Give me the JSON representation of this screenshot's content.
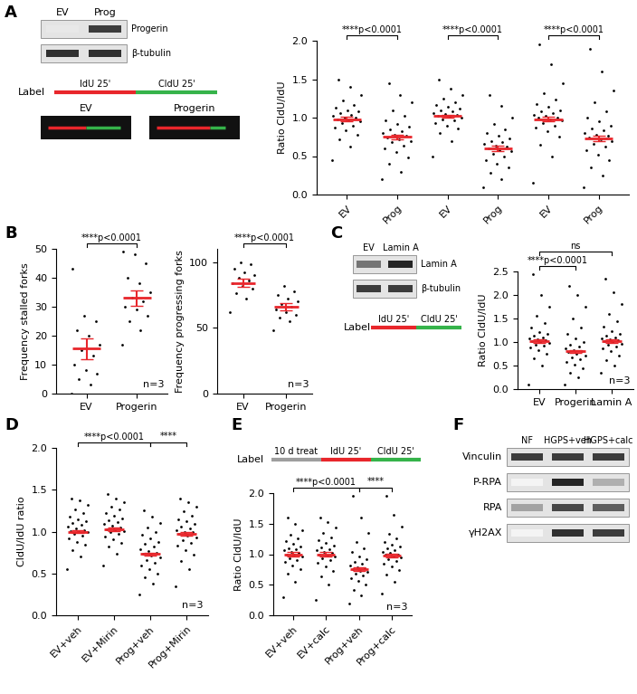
{
  "panel_labels": [
    "A",
    "B",
    "C",
    "D",
    "E",
    "F"
  ],
  "blots": [
    {
      "lanes": [
        "EV",
        "Prog"
      ],
      "label_side": "right",
      "rows": [
        {
          "label": "Progerin",
          "intensity": [
            0.1,
            0.85
          ]
        },
        {
          "label": "β-tubulin",
          "intensity": [
            0.9,
            0.9
          ]
        }
      ]
    },
    {
      "lanes": [
        "EV",
        "Lamin A"
      ],
      "label_side": "right",
      "rows": [
        {
          "label": "Lamin A",
          "intensity": [
            0.6,
            0.95
          ]
        },
        {
          "label": "β-tubulin",
          "intensity": [
            0.85,
            0.85
          ]
        }
      ]
    },
    {
      "lanes": [
        "NF",
        "HGPS+veh",
        "HGPS+calc"
      ],
      "label_side": "left",
      "rows": [
        {
          "label": "Vinculin",
          "intensity": [
            0.85,
            0.85,
            0.85
          ]
        },
        {
          "label": "P-RPA",
          "intensity": [
            0.05,
            0.95,
            0.35
          ]
        },
        {
          "label": "RPA",
          "intensity": [
            0.4,
            0.8,
            0.7
          ]
        },
        {
          "label": "γH2AX",
          "intensity": [
            0.05,
            0.9,
            0.85
          ]
        }
      ]
    }
  ],
  "labeling_schemes": [
    {
      "title": "Label",
      "segments": [
        {
          "label": "IdU 25'",
          "color": "#e8262b"
        },
        {
          "label": "CldU 25'",
          "color": "#35b34a"
        }
      ]
    },
    {
      "title": "Label",
      "segments": [
        {
          "label": "IdU 25'",
          "color": "#e8262b"
        },
        {
          "label": "CldU 25'",
          "color": "#35b34a"
        }
      ]
    },
    {
      "title": "Label",
      "segments": [
        {
          "label": "10 d treat",
          "color": "#9e9e9e"
        },
        {
          "label": "IdU 25'",
          "color": "#e8262b"
        },
        {
          "label": "CldU 25'",
          "color": "#35b34a"
        }
      ]
    }
  ],
  "fibers": [
    {
      "label": "EV",
      "idu_length": 0.5,
      "cldu_length": 0.45
    },
    {
      "label": "Progerin",
      "idu_length": 0.7,
      "cldu_length": 0.2
    }
  ],
  "chart_data": [
    {
      "type": "scatter",
      "y_label": "Ratio CldU/IdU",
      "categories": [
        "EV",
        "Prog",
        "EV",
        "Prog",
        "EV",
        "Prog"
      ],
      "color": "#000000",
      "values": [
        [
          0.45,
          0.62,
          0.72,
          0.78,
          0.83,
          0.87,
          0.9,
          0.93,
          0.95,
          0.97,
          0.98,
          1.0,
          1.0,
          1.02,
          1.04,
          1.06,
          1.08,
          1.1,
          1.13,
          1.17,
          1.22,
          1.3,
          1.4,
          1.5
        ],
        [
          0.2,
          0.3,
          0.4,
          0.48,
          0.55,
          0.6,
          0.64,
          0.68,
          0.7,
          0.72,
          0.74,
          0.76,
          0.78,
          0.8,
          0.82,
          0.85,
          0.88,
          0.92,
          0.97,
          1.02,
          1.1,
          1.2,
          1.3,
          1.45
        ],
        [
          0.5,
          0.7,
          0.8,
          0.86,
          0.9,
          0.93,
          0.96,
          0.98,
          1.0,
          1.01,
          1.02,
          1.03,
          1.05,
          1.06,
          1.08,
          1.1,
          1.12,
          1.14,
          1.17,
          1.2,
          1.25,
          1.3,
          1.38,
          1.5
        ],
        [
          0.1,
          0.2,
          0.28,
          0.35,
          0.4,
          0.45,
          0.5,
          0.53,
          0.56,
          0.58,
          0.6,
          0.62,
          0.64,
          0.66,
          0.68,
          0.7,
          0.73,
          0.76,
          0.8,
          0.85,
          0.92,
          1.0,
          1.15,
          1.3
        ],
        [
          0.15,
          0.5,
          0.65,
          0.75,
          0.82,
          0.87,
          0.9,
          0.93,
          0.96,
          0.98,
          1.0,
          1.0,
          1.02,
          1.04,
          1.06,
          1.08,
          1.1,
          1.14,
          1.18,
          1.24,
          1.32,
          1.45,
          1.7,
          1.95
        ],
        [
          0.1,
          0.25,
          0.35,
          0.45,
          0.52,
          0.58,
          0.62,
          0.66,
          0.7,
          0.72,
          0.74,
          0.76,
          0.78,
          0.8,
          0.83,
          0.86,
          0.9,
          0.95,
          1.0,
          1.08,
          1.2,
          1.35,
          1.6,
          1.9
        ]
      ],
      "error_bars": {
        "means": [
          0.98,
          0.75,
          1.02,
          0.6,
          0.98,
          0.73
        ],
        "errors": [
          0.03,
          0.03,
          0.02,
          0.03,
          0.03,
          0.03
        ],
        "color": "#e8262b"
      },
      "ylim": [
        0,
        2
      ],
      "yticks": [
        {
          "value": 0,
          "label": "0.0"
        },
        0.5,
        {
          "value": 1,
          "label": "1.0"
        },
        1.5,
        {
          "value": 2,
          "label": "2.0"
        }
      ],
      "brackets": [
        {
          "from": 0,
          "to": 1,
          "label": "****p<0.0001"
        },
        {
          "from": 2,
          "to": 3,
          "label": "****p<0.0001"
        },
        {
          "from": 4,
          "to": 5,
          "label": "****p<0.0001"
        }
      ],
      "annotations": []
    },
    {
      "type": "scatter",
      "y_label": "Frequency stalled forks",
      "categories": [
        "EV",
        "Progerin"
      ],
      "color": "#000000",
      "values": [
        [
          0,
          3,
          5,
          7,
          8,
          10,
          13,
          15,
          17,
          20,
          22,
          25,
          27,
          43
        ],
        [
          17,
          22,
          25,
          27,
          29,
          30,
          32,
          33,
          35,
          38,
          40,
          45,
          48,
          49
        ]
      ],
      "error_bars": {
        "means": [
          15.5,
          33
        ],
        "errors": [
          3.5,
          2.7
        ],
        "color": "#e8262b"
      },
      "ylim": [
        0,
        50
      ],
      "yticks": [
        0,
        10,
        20,
        30,
        40,
        50
      ],
      "brackets": [
        {
          "from": 0,
          "to": 1,
          "label": "****p<0.0001"
        }
      ],
      "annotations": [
        "n=3"
      ]
    },
    {
      "type": "scatter",
      "y_label": "Frequency progressing forks",
      "categories": [
        "EV",
        "Progerin"
      ],
      "color": "#000000",
      "values": [
        [
          62,
          72,
          76,
          80,
          82,
          84,
          86,
          88,
          90,
          92,
          95,
          98,
          100
        ],
        [
          48,
          55,
          58,
          60,
          62,
          64,
          66,
          68,
          70,
          72,
          75,
          78,
          82
        ]
      ],
      "error_bars": {
        "means": [
          84,
          66
        ],
        "errors": [
          3,
          2.5
        ],
        "color": "#e8262b"
      },
      "ylim": [
        0,
        110
      ],
      "yticks": [
        0,
        50,
        100
      ],
      "brackets": [
        {
          "from": 0,
          "to": 1,
          "label": "****p<0.0001"
        }
      ],
      "annotations": [
        "n=3"
      ]
    },
    {
      "type": "scatter",
      "y_label": "Ratio CldU/IdU",
      "categories": [
        "EV",
        "Progerin",
        "Lamin A"
      ],
      "color": "#000000",
      "values": [
        [
          0.1,
          0.5,
          0.65,
          0.75,
          0.82,
          0.88,
          0.92,
          0.95,
          0.98,
          1.0,
          1.02,
          1.04,
          1.06,
          1.08,
          1.1,
          1.13,
          1.17,
          1.22,
          1.3,
          1.4,
          1.55,
          1.75,
          2.0,
          2.45
        ],
        [
          0.1,
          0.25,
          0.35,
          0.45,
          0.52,
          0.58,
          0.63,
          0.68,
          0.72,
          0.75,
          0.78,
          0.8,
          0.83,
          0.86,
          0.9,
          0.95,
          1.0,
          1.08,
          1.18,
          1.3,
          1.5,
          1.75,
          2.0,
          2.2
        ],
        [
          0.35,
          0.5,
          0.62,
          0.72,
          0.8,
          0.86,
          0.9,
          0.94,
          0.97,
          1.0,
          1.02,
          1.04,
          1.06,
          1.08,
          1.1,
          1.14,
          1.18,
          1.24,
          1.32,
          1.45,
          1.6,
          1.8,
          2.05,
          2.35
        ]
      ],
      "error_bars": {
        "means": [
          1.02,
          0.8,
          1.02
        ],
        "errors": [
          0.03,
          0.03,
          0.03
        ],
        "color": "#e8262b"
      },
      "ylim": [
        0,
        2.5
      ],
      "yticks": [
        {
          "value": 0,
          "label": "0.0"
        },
        0.5,
        {
          "value": 1,
          "label": "1.0"
        },
        1.5,
        {
          "value": 2,
          "label": "2.0"
        },
        2.5
      ],
      "brackets": [
        {
          "from": 0,
          "to": 1,
          "label": "****p<0.0001"
        },
        {
          "from": 0,
          "to": 2,
          "label": "ns"
        }
      ],
      "annotations": [
        "n=3"
      ]
    },
    {
      "type": "scatter",
      "y_label": "CldU/IdU ratio",
      "categories": [
        "EV+veh",
        "EV+Mirin",
        "Prog+veh",
        "Prog+Mirin"
      ],
      "color": "#000000",
      "values": [
        [
          0.55,
          0.7,
          0.78,
          0.84,
          0.88,
          0.92,
          0.95,
          0.97,
          0.99,
          1.0,
          1.01,
          1.02,
          1.04,
          1.06,
          1.08,
          1.1,
          1.12,
          1.15,
          1.18,
          1.22,
          1.27,
          1.32,
          1.37,
          1.4
        ],
        [
          0.6,
          0.74,
          0.82,
          0.87,
          0.91,
          0.94,
          0.97,
          0.99,
          1.01,
          1.02,
          1.03,
          1.05,
          1.07,
          1.09,
          1.11,
          1.13,
          1.16,
          1.19,
          1.22,
          1.26,
          1.3,
          1.35,
          1.4,
          1.45
        ],
        [
          0.25,
          0.38,
          0.45,
          0.5,
          0.55,
          0.6,
          0.63,
          0.66,
          0.69,
          0.71,
          0.73,
          0.75,
          0.77,
          0.79,
          0.82,
          0.85,
          0.88,
          0.92,
          0.96,
          1.0,
          1.05,
          1.1,
          1.18,
          1.25
        ],
        [
          0.35,
          0.55,
          0.65,
          0.72,
          0.78,
          0.83,
          0.87,
          0.9,
          0.93,
          0.95,
          0.97,
          0.99,
          1.0,
          1.02,
          1.04,
          1.06,
          1.09,
          1.12,
          1.15,
          1.19,
          1.24,
          1.3,
          1.35,
          1.4
        ]
      ],
      "error_bars": {
        "means": [
          1.0,
          1.03,
          0.73,
          0.97
        ],
        "errors": [
          0.02,
          0.02,
          0.02,
          0.02
        ],
        "color": "#e8262b"
      },
      "ylim": [
        0,
        2
      ],
      "yticks": [
        {
          "value": 0,
          "label": "0.0"
        },
        0.5,
        {
          "value": 1,
          "label": "1.0"
        },
        1.5,
        {
          "value": 2,
          "label": "2.0"
        }
      ],
      "brackets": [
        {
          "from": 0,
          "to": 2,
          "label": "****p<0.0001"
        },
        {
          "from": 2,
          "to": 3,
          "label": "****"
        }
      ],
      "annotations": [
        "n=3"
      ]
    },
    {
      "type": "scatter",
      "y_label": "Ratio CldU/IdU",
      "categories": [
        "EV+veh",
        "EV+calc",
        "Prog+veh",
        "Prog+calc"
      ],
      "color": "#000000",
      "values": [
        [
          0.3,
          0.55,
          0.68,
          0.76,
          0.82,
          0.87,
          0.91,
          0.94,
          0.97,
          0.99,
          1.0,
          1.02,
          1.04,
          1.06,
          1.08,
          1.1,
          1.13,
          1.17,
          1.21,
          1.26,
          1.32,
          1.4,
          1.5,
          1.6
        ],
        [
          0.25,
          0.5,
          0.64,
          0.73,
          0.8,
          0.86,
          0.9,
          0.93,
          0.96,
          0.98,
          1.0,
          1.02,
          1.04,
          1.06,
          1.08,
          1.11,
          1.14,
          1.18,
          1.23,
          1.28,
          1.35,
          1.43,
          1.52,
          1.6
        ],
        [
          0.2,
          0.33,
          0.42,
          0.5,
          0.56,
          0.61,
          0.65,
          0.68,
          0.71,
          0.73,
          0.75,
          0.77,
          0.79,
          0.82,
          0.85,
          0.88,
          0.92,
          0.97,
          1.03,
          1.1,
          1.2,
          1.35,
          1.6,
          1.95
        ],
        [
          0.35,
          0.55,
          0.66,
          0.74,
          0.8,
          0.85,
          0.89,
          0.92,
          0.95,
          0.97,
          0.99,
          1.0,
          1.02,
          1.04,
          1.06,
          1.09,
          1.12,
          1.16,
          1.2,
          1.26,
          1.34,
          1.45,
          1.65,
          1.95
        ]
      ],
      "error_bars": {
        "means": [
          1.0,
          1.0,
          0.75,
          0.98
        ],
        "errors": [
          0.03,
          0.03,
          0.03,
          0.03
        ],
        "color": "#e8262b"
      },
      "ylim": [
        0,
        2
      ],
      "yticks": [
        {
          "value": 0,
          "label": "0.0"
        },
        0.5,
        {
          "value": 1,
          "label": "1.0"
        },
        1.5,
        {
          "value": 2,
          "label": "2.0"
        }
      ],
      "brackets": [
        {
          "from": 0,
          "to": 2,
          "label": "****p<0.0001"
        },
        {
          "from": 2,
          "to": 3,
          "label": "****"
        }
      ],
      "annotations": [
        "n=3"
      ]
    }
  ]
}
